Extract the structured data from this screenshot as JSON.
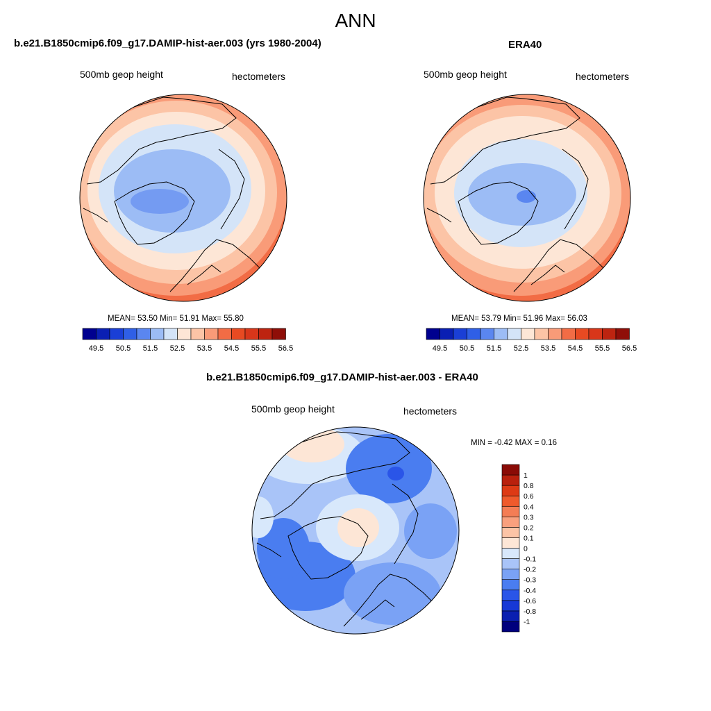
{
  "page_title": "ANN",
  "colors": {
    "scale11": [
      "#00008f",
      "#0a1fb3",
      "#1a3fd6",
      "#2f5fe6",
      "#5a86f0",
      "#9cbcf5",
      "#d4e4f8",
      "#fde6d6",
      "#fcc4a6",
      "#f99b78",
      "#f26c45"
    ],
    "scale12": [
      "#e84a22",
      "#d8361a",
      "#bd2410",
      "#8f0e08"
    ],
    "diff_scale": [
      "#00007d",
      "#0a1fb0",
      "#1638d6",
      "#2a55e8",
      "#4a7df0",
      "#7aa2f5",
      "#a9c4f8",
      "#d8e8fb",
      "#fde6d6",
      "#fcc4a6",
      "#f9a07e",
      "#f47d55",
      "#ef5a2c",
      "#dd3a15",
      "#b9200d",
      "#8a0b06"
    ]
  },
  "chart_data": [
    {
      "type": "heatmap",
      "title": "b.e21.B1850cmip6.f09_g17.DAMIP-hist-aer.003 (yrs 1980-2004)",
      "left_label": "500mb geop height",
      "right_label": "hectometers",
      "stats": {
        "mean": 53.5,
        "min": 51.91,
        "max": 55.8
      },
      "stats_text": "MEAN=  53.50  Min=  51.91  Max=  55.80",
      "colorbar_ticks": [
        "49.5",
        "50.5",
        "51.5",
        "52.5",
        "53.5",
        "54.5",
        "55.5",
        "56.5"
      ],
      "contour_levels": [
        49.5,
        50,
        50.5,
        51,
        51.5,
        52,
        52.5,
        53,
        53.5,
        54,
        54.5,
        55,
        55.5,
        56,
        56.5
      ]
    },
    {
      "type": "heatmap",
      "title": "ERA40",
      "left_label": "500mb geop height",
      "right_label": "hectometers",
      "stats": {
        "mean": 53.79,
        "min": 51.96,
        "max": 56.03
      },
      "stats_text": "MEAN=  53.79  Min=  51.96  Max=  56.03",
      "colorbar_ticks": [
        "49.5",
        "50.5",
        "51.5",
        "52.5",
        "53.5",
        "54.5",
        "55.5",
        "56.5"
      ],
      "contour_levels": [
        49.5,
        50,
        50.5,
        51,
        51.5,
        52,
        52.5,
        53,
        53.5,
        54,
        54.5,
        55,
        55.5,
        56,
        56.5
      ]
    },
    {
      "type": "heatmap",
      "title": "b.e21.B1850cmip6.f09_g17.DAMIP-hist-aer.003 - ERA40",
      "left_label": "500mb geop height",
      "right_label": "hectometers",
      "stats": {
        "min": -0.42,
        "max": 0.16
      },
      "stats_text": "MIN =  -0.42 MAX =   0.16",
      "colorbar_ticks": [
        "1",
        "0.8",
        "0.6",
        "0.4",
        "0.3",
        "0.2",
        "0.1",
        "0",
        "-0.1",
        "-0.2",
        "-0.3",
        "-0.4",
        "-0.6",
        "-0.8",
        "-1"
      ]
    }
  ]
}
